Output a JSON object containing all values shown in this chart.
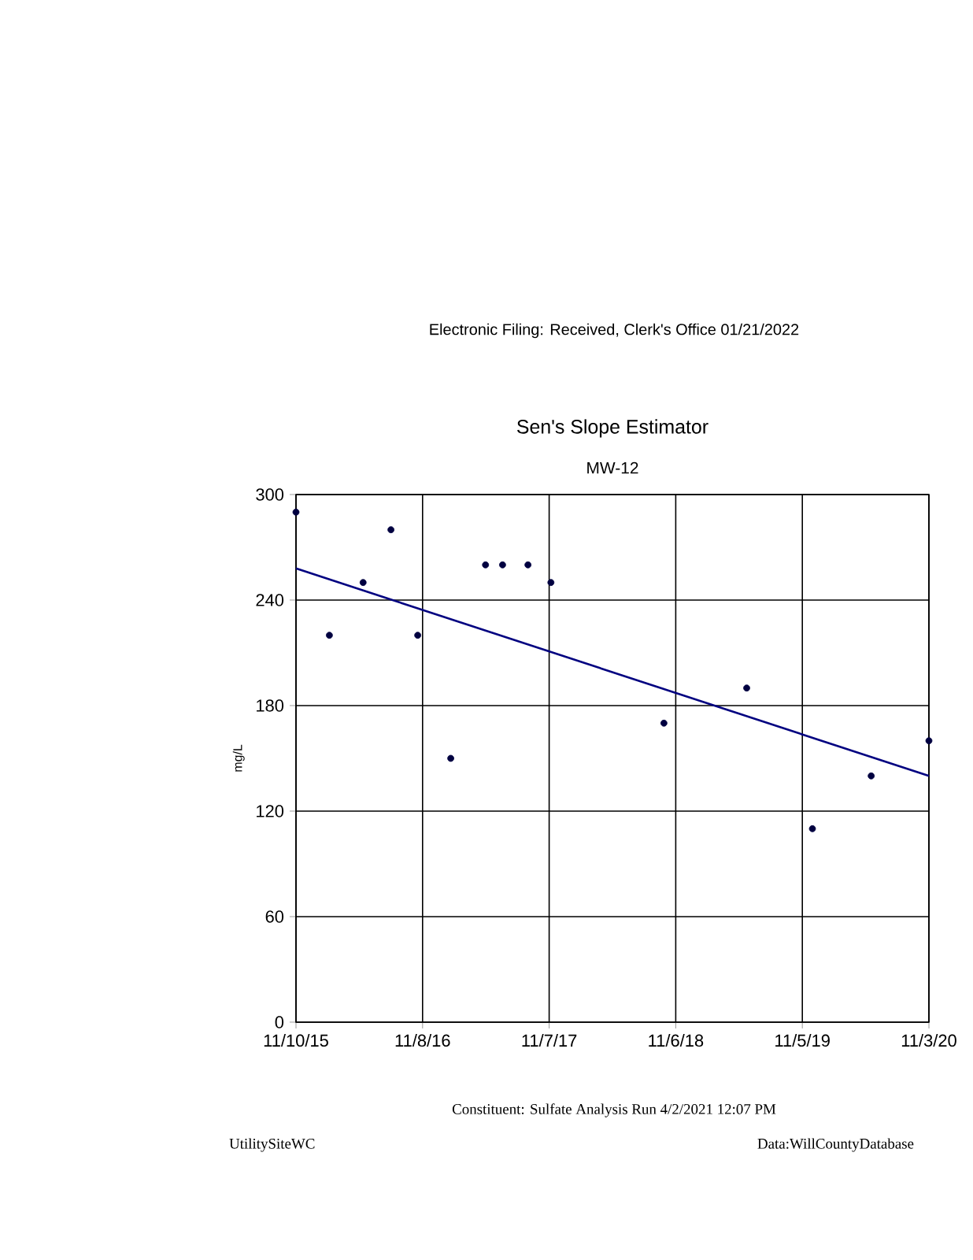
{
  "chart_data": {
    "type": "scatter",
    "title": "Sen's Slope Estimator",
    "subtitle": "MW-12",
    "ylabel": "mg/L",
    "annotations": [
      "Electronic Filing: Received, Clerk's Office 01/21/2022",
      "Constituent: Sulfate Analysis Run 4/2/2021 12:07 PM",
      "UtilitySiteWC",
      "Data:WillCountyDatabase"
    ],
    "series": [
      {
        "color": "#000040",
        "x": [
          "2015-11-10",
          "2016-02-14",
          "2016-05-21",
          "2016-08-09",
          "2016-10-25",
          "2017-01-28",
          "2017-05-08",
          "2017-06-26",
          "2017-09-07",
          "2017-11-12",
          "2018-10-03",
          "2019-05-29",
          "2019-12-04",
          "2020-05-21",
          "2020-11-03"
        ],
        "values": [
          290,
          220,
          250,
          280,
          220,
          150,
          260,
          260,
          260,
          250,
          170,
          190,
          110,
          140,
          160
        ]
      },
      {
        "type": "line",
        "color": "#000080",
        "x": [
          "2015-11-10",
          "2020-11-03"
        ],
        "values": [
          258,
          140
        ]
      }
    ],
    "grid": true,
    "xlim": [
      "2015-11-10",
      "2020-11-03"
    ],
    "ylim": [
      0,
      300
    ],
    "xticks": [
      {
        "value": "2015-11-10",
        "label": "11/10/15"
      },
      {
        "value": "2016-11-08",
        "label": "11/8/16"
      },
      {
        "value": "2017-11-07",
        "label": "11/7/17"
      },
      {
        "value": "2018-11-06",
        "label": "11/6/18"
      },
      {
        "value": "2019-11-05",
        "label": "11/5/19"
      },
      {
        "value": "2020-11-03",
        "label": "11/3/20"
      }
    ],
    "yticks": [
      0,
      60,
      120,
      180,
      240,
      300
    ]
  }
}
